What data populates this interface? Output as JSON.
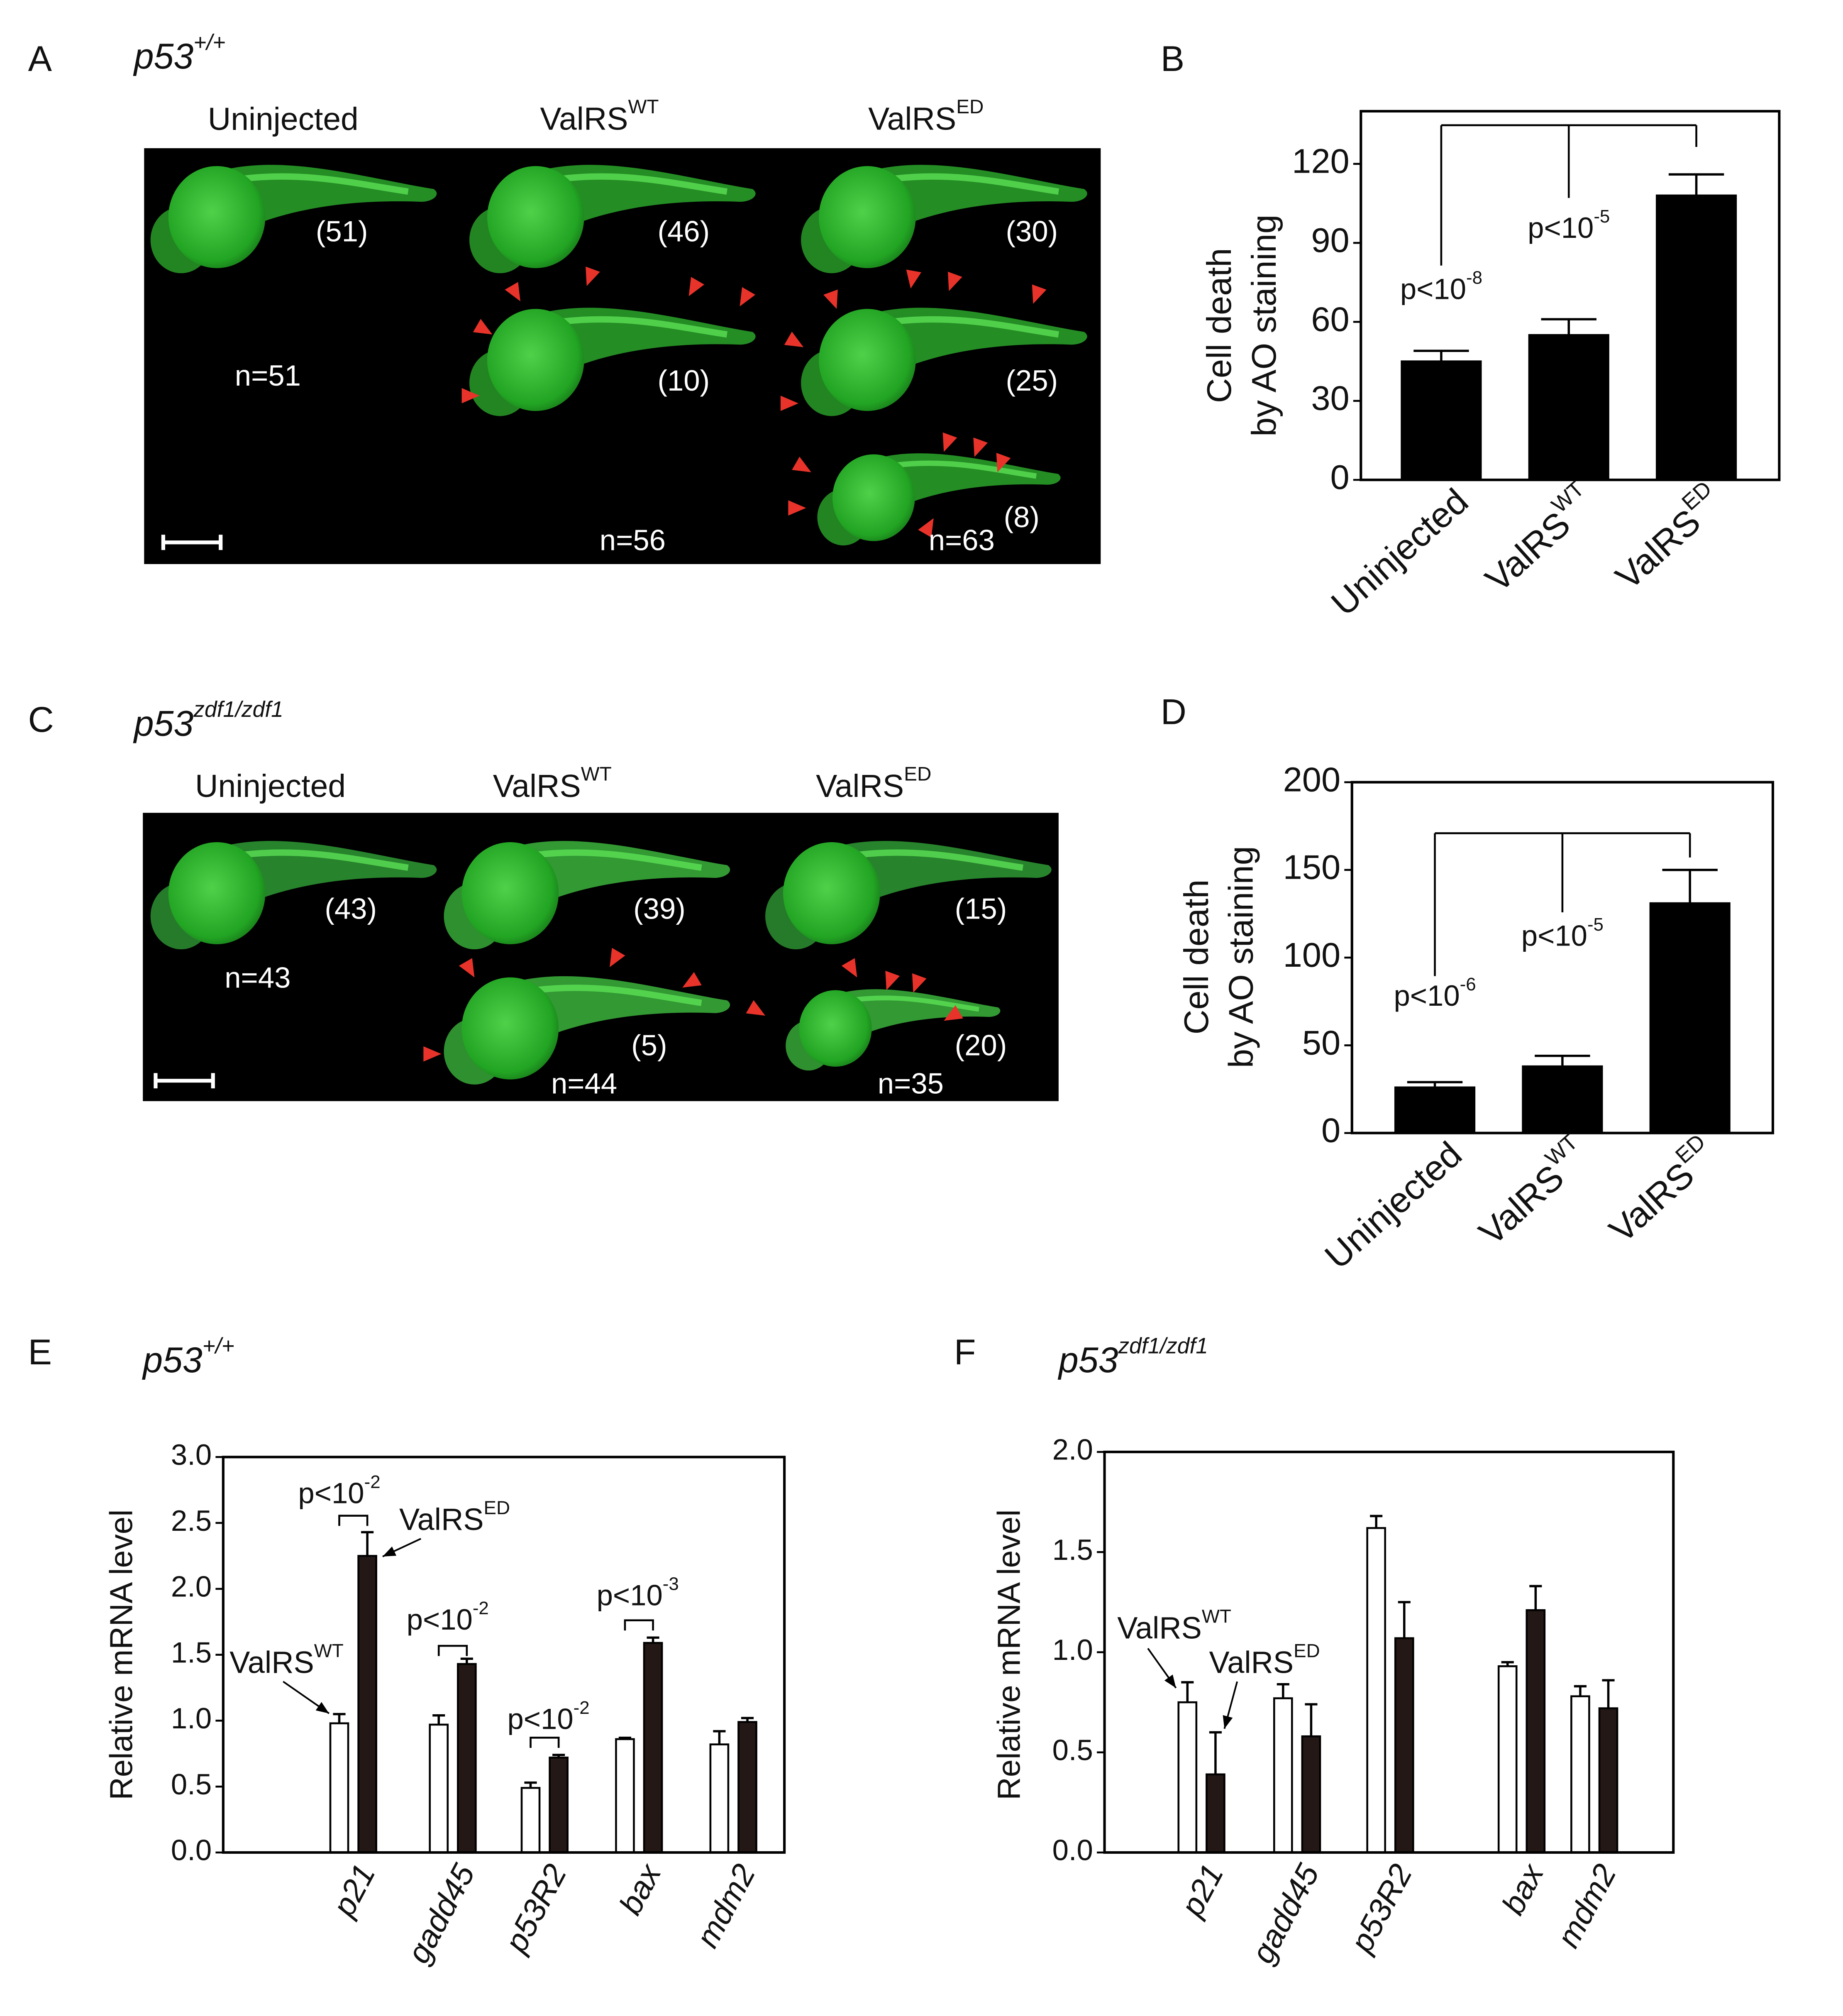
{
  "image_panels": [
    {
      "label": "A",
      "genotype": {
        "text": "p53",
        "sup": "+/+"
      },
      "columns": [
        "Uninjected",
        {
          "text": "ValRS",
          "sup": "WT"
        },
        {
          "text": "ValRS",
          "sup": "ED"
        }
      ],
      "counts": [
        "(51)",
        "(46)",
        "(30)",
        "(10)",
        "(25)",
        "(8)"
      ],
      "n_labels": [
        "n=51",
        "n=56",
        "n=63"
      ]
    },
    {
      "label": "C",
      "genotype": {
        "text": "p53",
        "sup": "zdf1/zdf1"
      },
      "columns": [
        "Uninjected",
        {
          "text": "ValRS",
          "sup": "WT"
        },
        {
          "text": "ValRS",
          "sup": "ED"
        }
      ],
      "counts": [
        "(43)",
        "(39)",
        "(15)",
        "(5)",
        "(20)"
      ],
      "n_labels": [
        "n=43",
        "n=44",
        "n=35"
      ]
    }
  ],
  "chart_data": [
    {
      "type": "bar",
      "label": "B",
      "y_label": [
        "Cell death",
        "by AO staining"
      ],
      "categories": [
        "Uninjected",
        {
          "text": "ValRS",
          "sup": "WT"
        },
        {
          "text": "ValRS",
          "sup": "ED"
        }
      ],
      "values": [
        45,
        55,
        108
      ],
      "errors": [
        4,
        6,
        8
      ],
      "color": "#000000",
      "ylim": [
        0,
        140
      ],
      "yticks": [
        0,
        30,
        60,
        90,
        120
      ],
      "annotations": [
        {
          "text": "p<10",
          "sup": "-8"
        },
        {
          "text": "p<10",
          "sup": "-5"
        }
      ]
    },
    {
      "type": "bar",
      "label": "D",
      "y_label": [
        "Cell death",
        "by AO staining"
      ],
      "categories": [
        "Uninjected",
        {
          "text": "ValRS",
          "sup": "WT"
        },
        {
          "text": "ValRS",
          "sup": "ED"
        }
      ],
      "values": [
        26,
        38,
        131
      ],
      "errors": [
        3,
        6,
        19
      ],
      "color": "#000000",
      "ylim": [
        0,
        200
      ],
      "yticks": [
        0,
        50,
        100,
        150,
        200
      ],
      "annotations": [
        {
          "text": "p<10",
          "sup": "-6"
        },
        {
          "text": "p<10",
          "sup": "-5"
        }
      ]
    },
    {
      "type": "bar",
      "label": "E",
      "subtitle": {
        "text": "p53",
        "sup": "+/+"
      },
      "y_label": "Relative mRNA level",
      "categories": [
        "p21",
        "gadd45",
        "p53R2",
        "bax",
        "mdm2"
      ],
      "series": [
        {
          "name": {
            "text": "ValRS",
            "sup": "WT"
          },
          "color": "#ffffff",
          "values": [
            0.98,
            0.97,
            0.49,
            0.86,
            0.82
          ],
          "errors": [
            0.07,
            0.07,
            0.04,
            0.01,
            0.1
          ]
        },
        {
          "name": {
            "text": "ValRS",
            "sup": "ED"
          },
          "color": "#231815",
          "values": [
            2.25,
            1.43,
            0.72,
            1.59,
            0.99
          ],
          "errors": [
            0.18,
            0.04,
            0.02,
            0.04,
            0.03
          ]
        }
      ],
      "ylim": [
        0,
        3
      ],
      "yticks": [
        {
          "value": 0,
          "label": "0.0"
        },
        0.5,
        {
          "value": 1,
          "label": "1.0"
        },
        1.5,
        {
          "value": 2,
          "label": "2.0"
        },
        2.5,
        {
          "value": 3,
          "label": "3.0"
        }
      ],
      "annotations": [
        {
          "text": "p<10",
          "sup": "-2"
        },
        {
          "text": "p<10",
          "sup": "-2"
        },
        {
          "text": "p<10",
          "sup": "-2"
        },
        {
          "text": "p<10",
          "sup": "-3"
        }
      ]
    },
    {
      "type": "bar",
      "label": "F",
      "subtitle": {
        "text": "p53",
        "sup": "zdf1/zdf1"
      },
      "y_label": "Relative mRNA level",
      "categories": [
        "p21",
        "gadd45",
        "p53R2",
        "bax",
        "mdm2"
      ],
      "series": [
        {
          "name": {
            "text": "ValRS",
            "sup": "WT"
          },
          "color": "#ffffff",
          "values": [
            0.75,
            0.77,
            1.62,
            0.93,
            0.78
          ],
          "errors": [
            0.1,
            0.07,
            0.06,
            0.02,
            0.05
          ]
        },
        {
          "name": {
            "text": "ValRS",
            "sup": "ED"
          },
          "color": "#231815",
          "values": [
            0.39,
            0.58,
            1.07,
            1.21,
            0.72
          ],
          "errors": [
            0.21,
            0.16,
            0.18,
            0.12,
            0.14
          ]
        }
      ],
      "ylim": [
        0,
        2
      ],
      "yticks": [
        {
          "value": 0,
          "label": "0.0"
        },
        0.5,
        {
          "value": 1,
          "label": "1.0"
        },
        1.5,
        {
          "value": 2,
          "label": "2.0"
        }
      ]
    }
  ]
}
